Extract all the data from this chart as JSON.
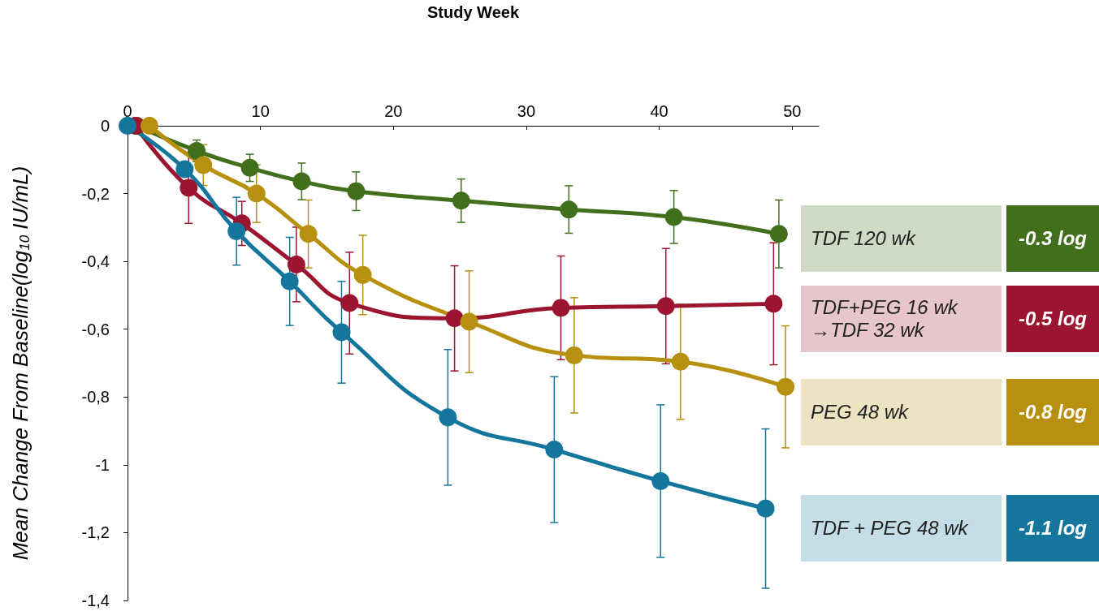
{
  "chart_data": {
    "type": "line",
    "xlabel": "Study Week",
    "ylabel": "Mean Change From Baseline(log$_{10}$ IU/mL)",
    "xlim": [
      0,
      52
    ],
    "xticks": [
      0,
      10,
      20,
      30,
      40,
      50
    ],
    "ylim": [
      -1.4,
      0
    ],
    "yticks": [
      0,
      {
        "value": -0.2,
        "label": "-0,2"
      },
      {
        "value": -0.4,
        "label": "-0,4"
      },
      {
        "value": -0.6,
        "label": "-0,6"
      },
      {
        "value": -0.8,
        "label": "-0,8"
      },
      -1,
      {
        "value": -1.2,
        "label": "-1,2"
      },
      {
        "value": -1.4,
        "label": "-1,4"
      }
    ],
    "grid": false,
    "legend": "right",
    "marker": "circle",
    "line_style": "solid",
    "annotations": [
      "-0.3 log",
      "-0.5 log",
      "-0.8 log",
      "-1.1 log"
    ],
    "series": [
      {
        "name": "TDF 120 wk",
        "color": "#426f1c",
        "x": [
          0.7,
          5.2,
          9.2,
          13.1,
          17.2,
          25.1,
          33.2,
          41.1,
          49.0
        ],
        "values": [
          0,
          -0.074,
          -0.124,
          -0.164,
          -0.193,
          -0.221,
          -0.247,
          -0.269,
          -0.319
        ],
        "errors": [
          null,
          0.032,
          0.04,
          0.054,
          0.057,
          0.064,
          0.07,
          0.078,
          0.1
        ]
      },
      {
        "name": "TDF+PEG 16 wk →TDF 32 wk",
        "color": "#9b1530",
        "x": [
          0.6,
          4.6,
          8.6,
          12.7,
          16.7,
          24.6,
          32.6,
          40.5,
          48.6
        ],
        "values": [
          0,
          -0.183,
          -0.288,
          -0.409,
          -0.523,
          -0.568,
          -0.537,
          -0.532,
          -0.525
        ],
        "errors": [
          null,
          0.105,
          0.065,
          0.11,
          0.15,
          0.155,
          0.153,
          0.17,
          0.18
        ]
      },
      {
        "name": "PEG 48 wk",
        "color": "#b8900f",
        "x": [
          1.65,
          5.7,
          9.7,
          13.6,
          17.7,
          25.7,
          33.6,
          41.6,
          49.5
        ],
        "values": [
          0,
          -0.116,
          -0.2,
          -0.319,
          -0.44,
          -0.578,
          -0.677,
          -0.696,
          -0.77
        ],
        "errors": [
          null,
          0.06,
          0.085,
          0.1,
          0.117,
          0.15,
          0.17,
          0.17,
          0.18
        ]
      },
      {
        "name": "TDF + PEG 48 wk",
        "color": "#14769c",
        "x": [
          0,
          4.3,
          8.2,
          12.2,
          16.1,
          24.1,
          32.1,
          40.1,
          48.0
        ],
        "values": [
          0,
          -0.128,
          -0.311,
          -0.459,
          -0.609,
          -0.86,
          -0.955,
          -1.048,
          -1.129
        ],
        "errors": [
          null,
          null,
          0.1,
          0.13,
          0.15,
          0.2,
          0.215,
          0.225,
          0.235
        ]
      }
    ]
  }
}
